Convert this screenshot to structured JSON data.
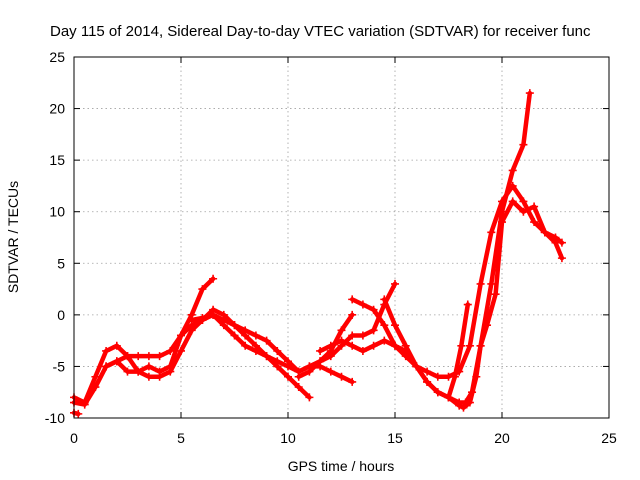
{
  "chart_data": {
    "type": "scatter",
    "title": "Day 115 of 2014, Sidereal Day-to-day VTEC variation (SDTVAR) for receiver func",
    "xlabel": "GPS time / hours",
    "ylabel": "SDTVAR / TECUs",
    "xlim": [
      0,
      25
    ],
    "ylim": [
      -10,
      25
    ],
    "xticks": [
      0,
      5,
      10,
      15,
      20,
      25
    ],
    "yticks": [
      -10,
      -5,
      0,
      5,
      10,
      15,
      20,
      25
    ],
    "grid": true,
    "marker": "+",
    "color": "#ff0000",
    "series": [
      {
        "points": [
          [
            0,
            -8
          ],
          [
            0.5,
            -8.5
          ],
          [
            1.0,
            -6
          ],
          [
            1.5,
            -3.5
          ],
          [
            2.0,
            -3
          ],
          [
            2.5,
            -4
          ],
          [
            3.0,
            -5.5
          ],
          [
            3.5,
            -5
          ],
          [
            4.0,
            -5.5
          ],
          [
            4.5,
            -5
          ],
          [
            5.0,
            -2
          ],
          [
            5.5,
            0
          ],
          [
            6.0,
            2.5
          ],
          [
            6.5,
            3.5
          ]
        ]
      },
      {
        "points": [
          [
            0,
            -8.5
          ],
          [
            0.5,
            -8.7
          ],
          [
            1.0,
            -7
          ],
          [
            1.5,
            -5
          ],
          [
            2.0,
            -4.5
          ],
          [
            2.5,
            -4
          ],
          [
            3.0,
            -4
          ],
          [
            3.5,
            -4
          ],
          [
            4.0,
            -4
          ],
          [
            4.5,
            -3.5
          ],
          [
            5.0,
            -2
          ],
          [
            5.5,
            -1
          ],
          [
            6.0,
            -0.5
          ],
          [
            6.5,
            0
          ],
          [
            7.0,
            -1
          ],
          [
            7.5,
            -2
          ],
          [
            8.0,
            -3
          ],
          [
            8.5,
            -3.5
          ],
          [
            9.0,
            -4
          ],
          [
            9.5,
            -4.5
          ],
          [
            10.0,
            -5
          ],
          [
            10.5,
            -5.5
          ],
          [
            11.0,
            -5
          ],
          [
            11.5,
            -5
          ],
          [
            12.0,
            -5.5
          ],
          [
            12.5,
            -6
          ],
          [
            13.0,
            -6.5
          ]
        ]
      },
      {
        "points": [
          [
            1.5,
            -5
          ],
          [
            2.0,
            -4.5
          ],
          [
            2.5,
            -5.5
          ],
          [
            3.0,
            -5.5
          ],
          [
            3.5,
            -6
          ],
          [
            4.0,
            -6
          ],
          [
            4.5,
            -5.5
          ],
          [
            5.0,
            -3.5
          ],
          [
            5.5,
            -1.5
          ],
          [
            6.0,
            -0.5
          ],
          [
            6.5,
            0.5
          ],
          [
            7.0,
            0
          ],
          [
            7.5,
            -1
          ],
          [
            8.0,
            -2
          ],
          [
            8.5,
            -3
          ],
          [
            9.0,
            -4
          ],
          [
            9.5,
            -5
          ],
          [
            10.0,
            -6
          ],
          [
            10.5,
            -7
          ],
          [
            11.0,
            -8
          ]
        ]
      },
      {
        "points": [
          [
            5.5,
            -0.5
          ],
          [
            6.0,
            -0.3
          ],
          [
            6.5,
            0
          ],
          [
            7.0,
            -0.5
          ],
          [
            7.5,
            -1
          ],
          [
            8.0,
            -1.5
          ],
          [
            8.5,
            -2
          ],
          [
            9.0,
            -2.5
          ],
          [
            9.5,
            -3.5
          ],
          [
            10.0,
            -4.5
          ],
          [
            10.5,
            -5.5
          ],
          [
            11.0,
            -5
          ],
          [
            11.5,
            -4.5
          ],
          [
            12.0,
            -3.5
          ],
          [
            12.5,
            -1.5
          ],
          [
            13.0,
            0
          ]
        ]
      },
      {
        "points": [
          [
            10.5,
            -6
          ],
          [
            11.0,
            -5.5
          ],
          [
            11.5,
            -4.5
          ],
          [
            12.0,
            -4
          ],
          [
            12.5,
            -3
          ],
          [
            13.0,
            -2
          ],
          [
            13.5,
            -2
          ],
          [
            14.0,
            -1.5
          ],
          [
            14.5,
            1
          ],
          [
            15.0,
            3
          ]
        ]
      },
      {
        "points": [
          [
            13.0,
            1.5
          ],
          [
            13.5,
            1
          ],
          [
            14.0,
            0.5
          ],
          [
            14.5,
            -1
          ],
          [
            15.0,
            -3
          ],
          [
            15.5,
            -4
          ],
          [
            16.0,
            -5
          ],
          [
            16.5,
            -5.5
          ],
          [
            17.0,
            -6
          ],
          [
            17.5,
            -6
          ],
          [
            18.0,
            -5.5
          ],
          [
            18.5,
            -3
          ],
          [
            19.0,
            3
          ],
          [
            19.5,
            8
          ],
          [
            20.0,
            11
          ],
          [
            20.5,
            12.5
          ],
          [
            21.0,
            11
          ],
          [
            21.5,
            9
          ],
          [
            22.0,
            8
          ],
          [
            22.5,
            7.5
          ],
          [
            22.8,
            7
          ]
        ]
      },
      {
        "points": [
          [
            11.5,
            -3.5
          ],
          [
            12.0,
            -3
          ],
          [
            12.5,
            -2.5
          ],
          [
            13.0,
            -3
          ],
          [
            13.5,
            -3.5
          ],
          [
            14.0,
            -3
          ],
          [
            14.5,
            -2.5
          ],
          [
            15.0,
            -3
          ],
          [
            15.5,
            -3.5
          ],
          [
            16.0,
            -5
          ],
          [
            16.5,
            -6.5
          ],
          [
            17.0,
            -7.5
          ],
          [
            17.5,
            -8
          ],
          [
            18.0,
            -8.5
          ],
          [
            18.3,
            -8.5
          ],
          [
            18.6,
            -7.5
          ],
          [
            19.0,
            -3
          ],
          [
            19.5,
            3
          ],
          [
            20.0,
            10
          ],
          [
            20.5,
            14
          ],
          [
            21.0,
            16.5
          ],
          [
            21.3,
            21.5
          ]
        ]
      },
      {
        "points": [
          [
            14.5,
            1.5
          ],
          [
            15.0,
            -1
          ],
          [
            15.5,
            -3
          ],
          [
            16.0,
            -5
          ],
          [
            16.5,
            -6.5
          ],
          [
            17.0,
            -7.5
          ],
          [
            17.5,
            -8
          ],
          [
            18.0,
            -8.8
          ],
          [
            18.2,
            -9
          ],
          [
            18.5,
            -8.5
          ],
          [
            18.8,
            -6
          ],
          [
            19.0,
            -3
          ],
          [
            19.3,
            -1
          ],
          [
            19.7,
            2
          ],
          [
            20.0,
            9
          ],
          [
            20.5,
            11
          ],
          [
            21.0,
            10
          ],
          [
            21.5,
            10.5
          ],
          [
            22.0,
            8
          ],
          [
            22.5,
            7
          ],
          [
            22.8,
            5.5
          ]
        ]
      },
      {
        "points": [
          [
            17.5,
            -8
          ],
          [
            17.8,
            -6
          ],
          [
            18.1,
            -3
          ],
          [
            18.4,
            1
          ]
        ]
      },
      {
        "points": [
          [
            0,
            -9.5
          ],
          [
            0.2,
            -9.6
          ]
        ]
      }
    ]
  }
}
